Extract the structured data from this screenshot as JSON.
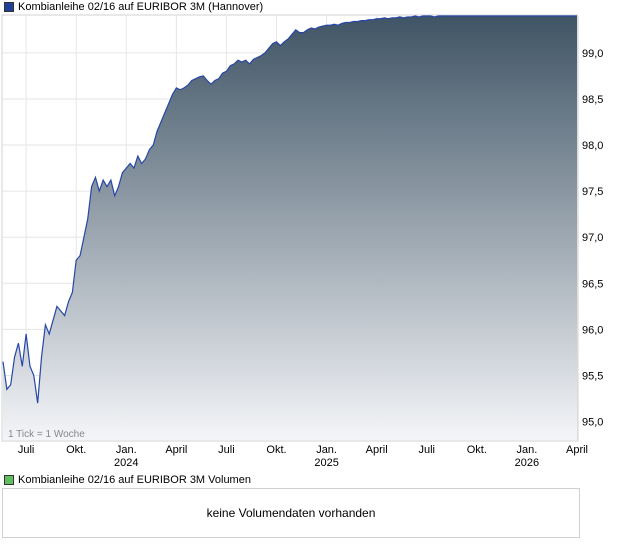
{
  "legend": {
    "price_label": "Kombianleihe 02/16 auf EURIBOR 3M (Hannover)",
    "price_color": "#1f3f99",
    "volume_label": "Kombianleihe 02/16 auf EURIBOR 3M Volumen",
    "volume_color": "#5fbf5f"
  },
  "tick_note": "1 Tick = 1 Woche",
  "volume_message": "keine Volumendaten vorhanden",
  "chart_data": {
    "type": "area",
    "title": "",
    "xlabel": "",
    "ylabel": "",
    "ylim": [
      94.8,
      99.4
    ],
    "y_ticks": [
      "95,0",
      "95,5",
      "96,0",
      "96,5",
      "97,0",
      "97,5",
      "98,0",
      "98,5",
      "99,0"
    ],
    "y_tick_values": [
      95.0,
      95.5,
      96.0,
      96.5,
      97.0,
      97.5,
      98.0,
      98.5,
      99.0
    ],
    "x_ticks": [
      {
        "label": "Juli",
        "sub": "",
        "index": 6
      },
      {
        "label": "Okt.",
        "sub": "",
        "index": 19
      },
      {
        "label": "Jan.",
        "sub": "2024",
        "index": 32
      },
      {
        "label": "April",
        "sub": "",
        "index": 45
      },
      {
        "label": "Juli",
        "sub": "",
        "index": 58
      },
      {
        "label": "Okt.",
        "sub": "",
        "index": 71
      },
      {
        "label": "Jan.",
        "sub": "2025",
        "index": 84
      },
      {
        "label": "April",
        "sub": "",
        "index": 97
      },
      {
        "label": "Juli",
        "sub": "",
        "index": 110
      },
      {
        "label": "Okt.",
        "sub": "",
        "index": 123
      },
      {
        "label": "Jan.",
        "sub": "2026",
        "index": 136
      },
      {
        "label": "April",
        "sub": "",
        "index": 149
      }
    ],
    "grid": true,
    "fill_top_color": "#3f5465",
    "fill_bottom_color": "#f4f5f8",
    "line_color": "#2747a6",
    "series": [
      {
        "values": [
          95.65,
          95.35,
          95.4,
          95.7,
          95.85,
          95.6,
          95.95,
          95.6,
          95.5,
          95.2,
          95.7,
          96.05,
          95.95,
          96.1,
          96.25,
          96.2,
          96.15,
          96.3,
          96.4,
          96.75,
          96.8,
          97.0,
          97.2,
          97.55,
          97.65,
          97.5,
          97.62,
          97.55,
          97.62,
          97.45,
          97.55,
          97.7,
          97.75,
          97.8,
          97.75,
          97.88,
          97.8,
          97.85,
          97.95,
          98.0,
          98.15,
          98.25,
          98.35,
          98.45,
          98.55,
          98.62,
          98.6,
          98.62,
          98.65,
          98.7,
          98.72,
          98.74,
          98.75,
          98.7,
          98.66,
          98.7,
          98.72,
          98.78,
          98.8,
          98.86,
          98.88,
          98.92,
          98.9,
          98.92,
          98.88,
          98.93,
          98.95,
          98.97,
          99.0,
          99.05,
          99.1,
          99.12,
          99.08,
          99.12,
          99.15,
          99.2,
          99.25,
          99.22,
          99.22,
          99.25,
          99.27,
          99.26,
          99.28,
          99.29,
          99.3,
          99.3,
          99.31,
          99.3,
          99.32,
          99.33,
          99.33,
          99.34,
          99.34,
          99.35,
          99.35,
          99.36,
          99.36,
          99.37,
          99.37,
          99.38,
          99.37,
          99.38,
          99.38,
          99.39,
          99.38,
          99.39,
          99.39,
          99.4,
          99.39,
          99.4,
          99.4,
          99.4,
          99.39,
          99.4,
          99.4,
          99.4,
          99.4,
          99.4,
          99.4,
          99.4,
          99.4,
          99.4,
          99.4,
          99.4,
          99.4,
          99.4,
          99.4,
          99.4,
          99.4,
          99.4,
          99.4,
          99.4,
          99.4,
          99.4,
          99.4,
          99.4,
          99.4,
          99.4,
          99.4,
          99.4,
          99.4,
          99.4,
          99.4,
          99.4,
          99.4,
          99.4,
          99.4,
          99.4,
          99.4,
          99.4
        ]
      }
    ]
  }
}
